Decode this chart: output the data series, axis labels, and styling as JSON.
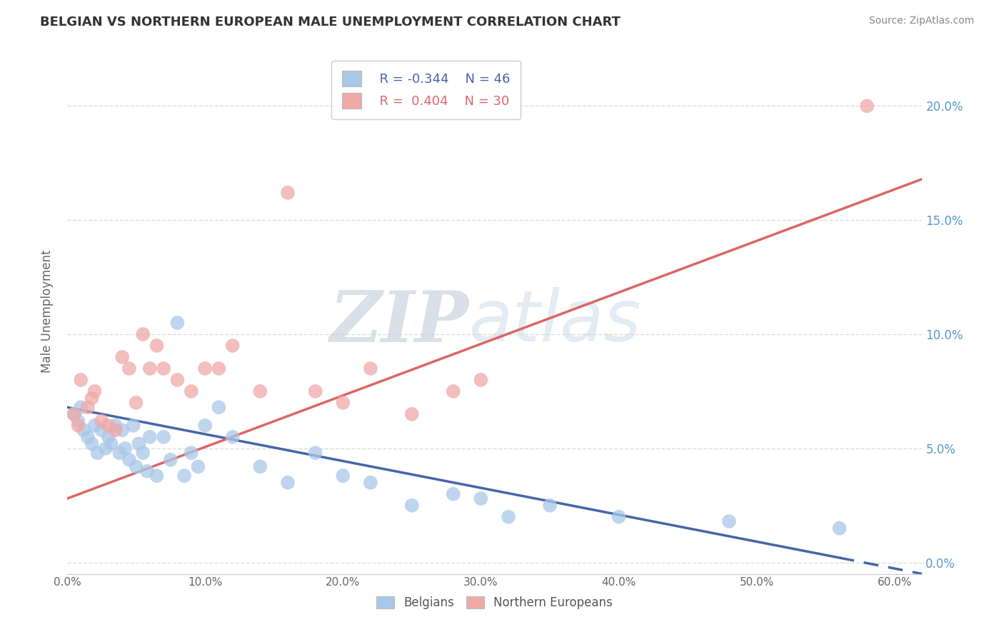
{
  "title": "BELGIAN VS NORTHERN EUROPEAN MALE UNEMPLOYMENT CORRELATION CHART",
  "source": "Source: ZipAtlas.com",
  "ylabel": "Male Unemployment",
  "xlim": [
    0.0,
    0.62
  ],
  "ylim": [
    -0.005,
    0.225
  ],
  "yticks": [
    0.0,
    0.05,
    0.1,
    0.15,
    0.2
  ],
  "ytick_labels": [
    "0.0%",
    "5.0%",
    "10.0%",
    "15.0%",
    "20.0%"
  ],
  "xticks": [
    0.0,
    0.1,
    0.2,
    0.3,
    0.4,
    0.5,
    0.6
  ],
  "xtick_labels": [
    "0.0%",
    "10.0%",
    "20.0%",
    "30.0%",
    "40.0%",
    "50.0%",
    "60.0%"
  ],
  "blue_R": -0.344,
  "blue_N": 46,
  "pink_R": 0.404,
  "pink_N": 30,
  "blue_color": "#A8C8E8",
  "pink_color": "#F0A8A8",
  "blue_line_color": "#4466AA",
  "pink_line_color": "#DD6666",
  "watermark_zip": "ZIP",
  "watermark_atlas": "atlas",
  "watermark_color": "#C8D8EC",
  "legend_label_blue": "Belgians",
  "legend_label_pink": "Northern Europeans",
  "belgians_x": [
    0.005,
    0.008,
    0.01,
    0.012,
    0.015,
    0.018,
    0.02,
    0.022,
    0.025,
    0.028,
    0.03,
    0.032,
    0.035,
    0.038,
    0.04,
    0.042,
    0.045,
    0.048,
    0.05,
    0.052,
    0.055,
    0.058,
    0.06,
    0.065,
    0.07,
    0.075,
    0.08,
    0.085,
    0.09,
    0.095,
    0.1,
    0.11,
    0.12,
    0.14,
    0.16,
    0.18,
    0.2,
    0.22,
    0.25,
    0.28,
    0.3,
    0.32,
    0.35,
    0.4,
    0.48,
    0.56
  ],
  "belgians_y": [
    0.065,
    0.062,
    0.068,
    0.058,
    0.055,
    0.052,
    0.06,
    0.048,
    0.058,
    0.05,
    0.055,
    0.052,
    0.06,
    0.048,
    0.058,
    0.05,
    0.045,
    0.06,
    0.042,
    0.052,
    0.048,
    0.04,
    0.055,
    0.038,
    0.055,
    0.045,
    0.105,
    0.038,
    0.048,
    0.042,
    0.06,
    0.068,
    0.055,
    0.042,
    0.035,
    0.048,
    0.038,
    0.035,
    0.025,
    0.03,
    0.028,
    0.02,
    0.025,
    0.02,
    0.018,
    0.015
  ],
  "northern_x": [
    0.005,
    0.008,
    0.01,
    0.015,
    0.018,
    0.02,
    0.025,
    0.03,
    0.035,
    0.04,
    0.045,
    0.05,
    0.055,
    0.06,
    0.065,
    0.07,
    0.08,
    0.09,
    0.1,
    0.11,
    0.12,
    0.14,
    0.16,
    0.18,
    0.2,
    0.22,
    0.25,
    0.28,
    0.3,
    0.58
  ],
  "northern_y": [
    0.065,
    0.06,
    0.08,
    0.068,
    0.072,
    0.075,
    0.062,
    0.06,
    0.058,
    0.09,
    0.085,
    0.07,
    0.1,
    0.085,
    0.095,
    0.085,
    0.08,
    0.075,
    0.085,
    0.085,
    0.095,
    0.075,
    0.162,
    0.075,
    0.07,
    0.085,
    0.065,
    0.075,
    0.08,
    0.2
  ],
  "background_color": "#FFFFFF",
  "grid_color": "#DDDDDD",
  "blue_trend_x0": 0.0,
  "blue_trend_y0": 0.068,
  "blue_trend_x1": 0.62,
  "blue_trend_y1": -0.005,
  "blue_trend_solid_end": 0.56,
  "pink_trend_x0": 0.0,
  "pink_trend_y0": 0.028,
  "pink_trend_x1": 0.62,
  "pink_trend_y1": 0.168
}
